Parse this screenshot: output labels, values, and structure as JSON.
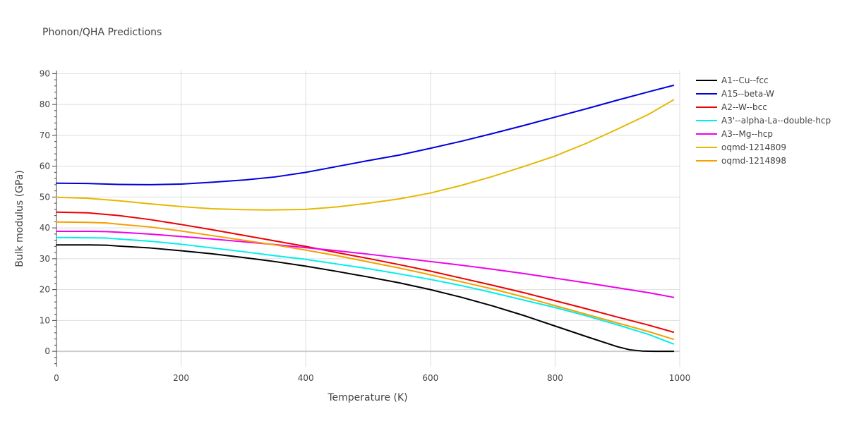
{
  "chart_data": {
    "type": "line",
    "title": "Phonon/QHA Predictions",
    "xlabel": "Temperature (K)",
    "ylabel": "Bulk modulus (GPa)",
    "xlim": [
      0,
      1000
    ],
    "ylim": [
      -5,
      91
    ],
    "xticks": [
      0,
      200,
      400,
      600,
      800,
      1000
    ],
    "yticks": [
      0,
      10,
      20,
      30,
      40,
      50,
      60,
      70,
      80,
      90
    ],
    "grid": true,
    "legend_position": "right",
    "series": [
      {
        "name": "A1--Cu--fcc",
        "color": "#000000",
        "x": [
          0,
          50,
          80,
          100,
          150,
          200,
          250,
          300,
          350,
          400,
          450,
          500,
          550,
          600,
          650,
          700,
          750,
          800,
          850,
          900,
          920,
          940,
          960,
          990
        ],
        "y": [
          34.5,
          34.5,
          34.4,
          34.1,
          33.5,
          32.6,
          31.6,
          30.4,
          29.1,
          27.6,
          25.9,
          24.1,
          22.2,
          20.0,
          17.5,
          14.7,
          11.6,
          8.2,
          4.8,
          1.5,
          0.5,
          0.1,
          0.0,
          0.0
        ]
      },
      {
        "name": "A15--beta-W",
        "color": "#0000dd",
        "x": [
          0,
          50,
          100,
          150,
          200,
          250,
          300,
          350,
          400,
          450,
          500,
          550,
          600,
          650,
          700,
          750,
          800,
          850,
          900,
          950,
          990
        ],
        "y": [
          54.5,
          54.4,
          54.1,
          54.0,
          54.2,
          54.8,
          55.5,
          56.5,
          58.0,
          59.9,
          61.8,
          63.6,
          65.8,
          68.1,
          70.6,
          73.2,
          75.9,
          78.6,
          81.4,
          84.1,
          86.2
        ]
      },
      {
        "name": "A2--W--bcc",
        "color": "#ee0000",
        "x": [
          0,
          50,
          100,
          150,
          200,
          250,
          300,
          350,
          400,
          450,
          500,
          550,
          600,
          650,
          700,
          750,
          800,
          850,
          900,
          950,
          990
        ],
        "y": [
          45.1,
          44.9,
          44.0,
          42.7,
          41.1,
          39.4,
          37.6,
          35.8,
          34.0,
          32.0,
          30.1,
          28.1,
          26.0,
          23.7,
          21.4,
          19.0,
          16.4,
          13.8,
          11.1,
          8.5,
          6.2
        ]
      },
      {
        "name": "A3'--alpha-La--double-hcp",
        "color": "#00eeee",
        "x": [
          0,
          50,
          80,
          100,
          150,
          200,
          250,
          300,
          350,
          400,
          450,
          500,
          550,
          600,
          650,
          700,
          750,
          800,
          850,
          900,
          950,
          990
        ],
        "y": [
          36.9,
          36.8,
          36.7,
          36.4,
          35.7,
          34.7,
          33.5,
          32.3,
          31.0,
          29.8,
          28.3,
          26.8,
          25.1,
          23.3,
          21.3,
          19.0,
          16.6,
          14.2,
          11.5,
          8.6,
          5.5,
          2.4
        ]
      },
      {
        "name": "A3--Mg--hcp",
        "color": "#ee00ee",
        "x": [
          0,
          50,
          80,
          100,
          150,
          200,
          250,
          300,
          350,
          400,
          450,
          500,
          550,
          600,
          650,
          700,
          750,
          800,
          850,
          900,
          950,
          990
        ],
        "y": [
          38.9,
          38.9,
          38.8,
          38.6,
          38.0,
          37.2,
          36.4,
          35.5,
          34.6,
          33.6,
          32.6,
          31.5,
          30.3,
          29.1,
          27.9,
          26.6,
          25.2,
          23.7,
          22.2,
          20.6,
          19.0,
          17.5
        ]
      },
      {
        "name": "oqmd-1214809",
        "color": "#e6b800",
        "x": [
          0,
          50,
          100,
          150,
          200,
          250,
          300,
          340,
          400,
          450,
          500,
          550,
          600,
          650,
          700,
          750,
          800,
          850,
          900,
          950,
          990
        ],
        "y": [
          49.9,
          49.6,
          48.8,
          47.8,
          46.9,
          46.2,
          45.9,
          45.8,
          46.0,
          46.8,
          48.0,
          49.4,
          51.3,
          53.8,
          56.7,
          59.9,
          63.3,
          67.4,
          72.0,
          76.8,
          81.5
        ]
      },
      {
        "name": "oqmd-1214898",
        "color": "#f5a000",
        "x": [
          0,
          50,
          80,
          100,
          150,
          200,
          250,
          300,
          350,
          400,
          450,
          500,
          550,
          600,
          650,
          700,
          750,
          800,
          850,
          900,
          950,
          990
        ],
        "y": [
          41.9,
          41.8,
          41.6,
          41.2,
          40.3,
          39.0,
          37.5,
          36.0,
          34.5,
          32.8,
          31.0,
          29.0,
          27.0,
          24.8,
          22.5,
          20.2,
          17.6,
          14.8,
          12.0,
          9.2,
          6.4,
          3.9
        ]
      }
    ]
  }
}
